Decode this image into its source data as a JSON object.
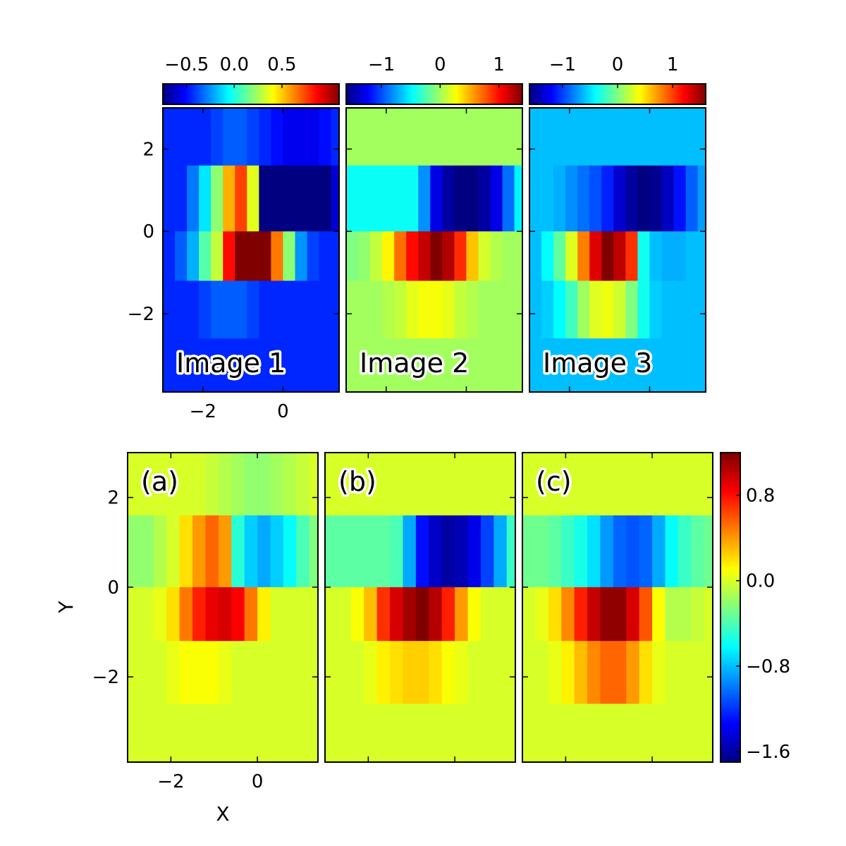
{
  "chart_data": {
    "type": "heatmap",
    "colormap": "jet",
    "x_edges": [
      -3.0,
      -2.7,
      -2.4,
      -2.1,
      -1.8,
      -1.5,
      -1.2,
      -0.9,
      -0.6,
      -0.3,
      0.0,
      0.3,
      0.6,
      0.9,
      1.2,
      1.4
    ],
    "y_edges": [
      -3.9,
      -2.6,
      -1.2,
      0.0,
      1.6,
      3.0
    ],
    "top_row": {
      "xlim": [
        -3.0,
        1.4
      ],
      "ylim": [
        -3.9,
        3.0
      ],
      "xticks": [
        -2,
        0
      ],
      "xtick_labels": [
        "−2",
        "0"
      ],
      "yticks": [
        2,
        0,
        -2
      ],
      "ytick_labels": [
        "2",
        "0",
        "−2"
      ],
      "panels": [
        {
          "label": "Image 1",
          "colorbar": {
            "vmin": -0.75,
            "vmax": 1.1,
            "ticks": [
              -0.5,
              0.0,
              0.5
            ],
            "tick_labels": [
              "−0.5",
              "0.0",
              "0.5"
            ]
          },
          "rows_top_to_bottom": [
            [
              -0.45,
              -0.45,
              -0.45,
              -0.45,
              -0.4,
              -0.35,
              -0.35,
              -0.4,
              -0.45,
              -0.5,
              -0.55,
              -0.55,
              -0.55,
              -0.5,
              -0.45
            ],
            [
              -0.45,
              -0.45,
              -0.3,
              -0.1,
              0.2,
              0.55,
              0.75,
              0.35,
              -1.0,
              -1.45,
              -1.6,
              -1.45,
              -1.2,
              -0.85,
              -0.6
            ],
            [
              -0.45,
              -0.35,
              -0.2,
              0.1,
              0.3,
              0.85,
              1.1,
              1.3,
              1.1,
              0.65,
              0.2,
              -0.25,
              -0.4,
              -0.45,
              -0.45
            ],
            [
              -0.45,
              -0.45,
              -0.45,
              -0.4,
              -0.35,
              -0.35,
              -0.35,
              -0.4,
              -0.45,
              -0.45,
              -0.45,
              -0.45,
              -0.45,
              -0.45,
              -0.45
            ],
            [
              -0.45,
              -0.45,
              -0.45,
              -0.45,
              -0.45,
              -0.45,
              -0.45,
              -0.45,
              -0.45,
              -0.45,
              -0.45,
              -0.45,
              -0.45,
              -0.45,
              -0.45
            ]
          ]
        },
        {
          "label": "Image 2",
          "colorbar": {
            "vmin": -1.6,
            "vmax": 1.4,
            "ticks": [
              -1,
              0,
              1
            ],
            "tick_labels": [
              "−1",
              "0",
              "1"
            ]
          },
          "rows_top_to_bottom": [
            [
              0.0,
              0.0,
              0.0,
              0.0,
              0.0,
              0.0,
              0.0,
              0.0,
              0.0,
              0.0,
              0.0,
              0.0,
              0.0,
              0.0,
              0.0
            ],
            [
              -0.45,
              -0.45,
              -0.45,
              -0.45,
              -0.45,
              -0.45,
              -0.8,
              -1.3,
              -1.5,
              -1.6,
              -1.6,
              -1.5,
              -1.3,
              -0.9,
              -0.5
            ],
            [
              -0.1,
              -0.05,
              0.1,
              0.3,
              0.7,
              1.0,
              1.2,
              1.4,
              1.25,
              0.9,
              0.45,
              0.15,
              0.05,
              0.0,
              0.0
            ],
            [
              0.0,
              0.0,
              0.0,
              0.05,
              0.1,
              0.2,
              0.25,
              0.25,
              0.2,
              0.1,
              0.05,
              0.0,
              0.0,
              0.0,
              0.0
            ],
            [
              0.0,
              0.0,
              0.0,
              0.0,
              0.0,
              0.0,
              0.0,
              0.0,
              0.0,
              0.0,
              0.0,
              0.0,
              0.0,
              0.0,
              0.0
            ]
          ]
        },
        {
          "label": "Image 3",
          "colorbar": {
            "vmin": -1.6,
            "vmax": 1.6,
            "ticks": [
              -1,
              0,
              1
            ],
            "tick_labels": [
              "−1",
              "0",
              "1"
            ]
          },
          "rows_top_to_bottom": [
            [
              -0.6,
              -0.6,
              -0.6,
              -0.6,
              -0.6,
              -0.6,
              -0.6,
              -0.6,
              -0.6,
              -0.6,
              -0.6,
              -0.6,
              -0.6,
              -0.6,
              -0.6
            ],
            [
              -0.6,
              -0.6,
              -0.65,
              -0.75,
              -0.85,
              -0.95,
              -1.1,
              -1.35,
              -1.5,
              -1.6,
              -1.55,
              -1.4,
              -1.15,
              -0.9,
              -0.7
            ],
            [
              -0.6,
              -0.4,
              -0.1,
              0.3,
              0.8,
              1.3,
              1.6,
              1.4,
              1.05,
              -0.35,
              -0.6,
              -0.65,
              -0.65,
              -0.6,
              -0.6
            ],
            [
              -0.6,
              -0.55,
              -0.4,
              -0.2,
              0.1,
              0.3,
              0.35,
              0.25,
              0.0,
              -0.35,
              -0.55,
              -0.6,
              -0.6,
              -0.6,
              -0.6
            ],
            [
              -0.6,
              -0.6,
              -0.6,
              -0.6,
              -0.6,
              -0.6,
              -0.6,
              -0.6,
              -0.6,
              -0.6,
              -0.6,
              -0.6,
              -0.6,
              -0.6,
              -0.6
            ]
          ]
        }
      ]
    },
    "bottom_row": {
      "xlim": [
        -3.0,
        1.4
      ],
      "ylim": [
        -3.9,
        3.0
      ],
      "xlabel": "X",
      "ylabel": "Y",
      "xticks": [
        -2,
        0
      ],
      "xtick_labels": [
        "−2",
        "0"
      ],
      "yticks": [
        2,
        0,
        -2
      ],
      "ytick_labels": [
        "2",
        "0",
        "−2"
      ],
      "colorbar": {
        "vmin": -1.7,
        "vmax": 1.2,
        "ticks": [
          0.8,
          0.0,
          -0.8,
          -1.6
        ],
        "tick_labels": [
          "0.8",
          "0.0",
          "−0.8",
          "−1.6"
        ]
      },
      "panels": [
        {
          "label": "(a)",
          "rows_top_to_bottom": [
            [
              0.0,
              0.0,
              0.0,
              0.0,
              0.0,
              0.0,
              -0.05,
              -0.1,
              -0.15,
              -0.2,
              -0.2,
              -0.15,
              -0.1,
              -0.05,
              0.0
            ],
            [
              -0.2,
              -0.2,
              -0.1,
              0.0,
              0.2,
              0.4,
              0.55,
              0.4,
              -0.5,
              -0.75,
              -0.85,
              -0.75,
              -0.6,
              -0.4,
              -0.25
            ],
            [
              0.0,
              0.0,
              0.05,
              0.2,
              0.5,
              0.75,
              0.9,
              0.95,
              0.85,
              0.5,
              0.15,
              0.0,
              0.0,
              0.0,
              0.0
            ],
            [
              0.0,
              0.0,
              0.0,
              0.05,
              0.1,
              0.1,
              0.1,
              0.05,
              0.0,
              0.0,
              0.0,
              0.0,
              0.0,
              0.0,
              0.0
            ],
            [
              0.0,
              0.0,
              0.0,
              0.0,
              0.0,
              0.0,
              0.0,
              0.0,
              0.0,
              0.0,
              0.0,
              0.0,
              0.0,
              0.0,
              0.0
            ]
          ]
        },
        {
          "label": "(b)",
          "rows_top_to_bottom": [
            [
              0.0,
              0.0,
              0.0,
              0.0,
              0.0,
              0.0,
              0.0,
              0.0,
              0.0,
              0.0,
              0.0,
              0.0,
              0.0,
              0.0,
              0.0
            ],
            [
              -0.35,
              -0.35,
              -0.35,
              -0.35,
              -0.35,
              -0.4,
              -0.85,
              -1.3,
              -1.5,
              -1.6,
              -1.55,
              -1.4,
              -1.15,
              -0.85,
              -0.45
            ],
            [
              0.0,
              0.0,
              0.1,
              0.3,
              0.7,
              0.95,
              1.1,
              1.2,
              1.05,
              0.75,
              0.4,
              0.1,
              0.0,
              0.0,
              0.0
            ],
            [
              0.0,
              0.0,
              0.0,
              0.05,
              0.15,
              0.2,
              0.25,
              0.25,
              0.2,
              0.1,
              0.05,
              0.0,
              0.0,
              0.0,
              0.0
            ],
            [
              0.0,
              0.0,
              0.0,
              0.0,
              0.0,
              0.0,
              0.0,
              0.0,
              0.0,
              0.0,
              0.0,
              0.0,
              0.0,
              0.0,
              0.0
            ]
          ]
        },
        {
          "label": "(c)",
          "rows_top_to_bottom": [
            [
              0.0,
              0.0,
              0.0,
              0.0,
              0.0,
              0.0,
              0.0,
              0.0,
              0.0,
              0.0,
              0.0,
              0.0,
              0.0,
              0.0,
              0.0
            ],
            [
              -0.3,
              -0.3,
              -0.35,
              -0.45,
              -0.55,
              -0.7,
              -0.9,
              -1.05,
              -1.1,
              -1.05,
              -0.85,
              -0.6,
              -0.45,
              -0.35,
              -0.3
            ],
            [
              0.0,
              0.05,
              0.2,
              0.45,
              0.75,
              1.0,
              1.15,
              1.15,
              0.95,
              0.6,
              0.1,
              -0.1,
              -0.1,
              -0.05,
              0.0
            ],
            [
              0.0,
              0.0,
              0.05,
              0.15,
              0.3,
              0.45,
              0.55,
              0.55,
              0.4,
              0.2,
              0.05,
              0.0,
              0.0,
              0.0,
              0.0
            ],
            [
              0.0,
              0.0,
              0.0,
              0.0,
              0.0,
              0.0,
              0.0,
              0.0,
              0.0,
              0.0,
              0.0,
              0.0,
              0.0,
              0.0,
              0.0
            ]
          ]
        }
      ]
    }
  }
}
